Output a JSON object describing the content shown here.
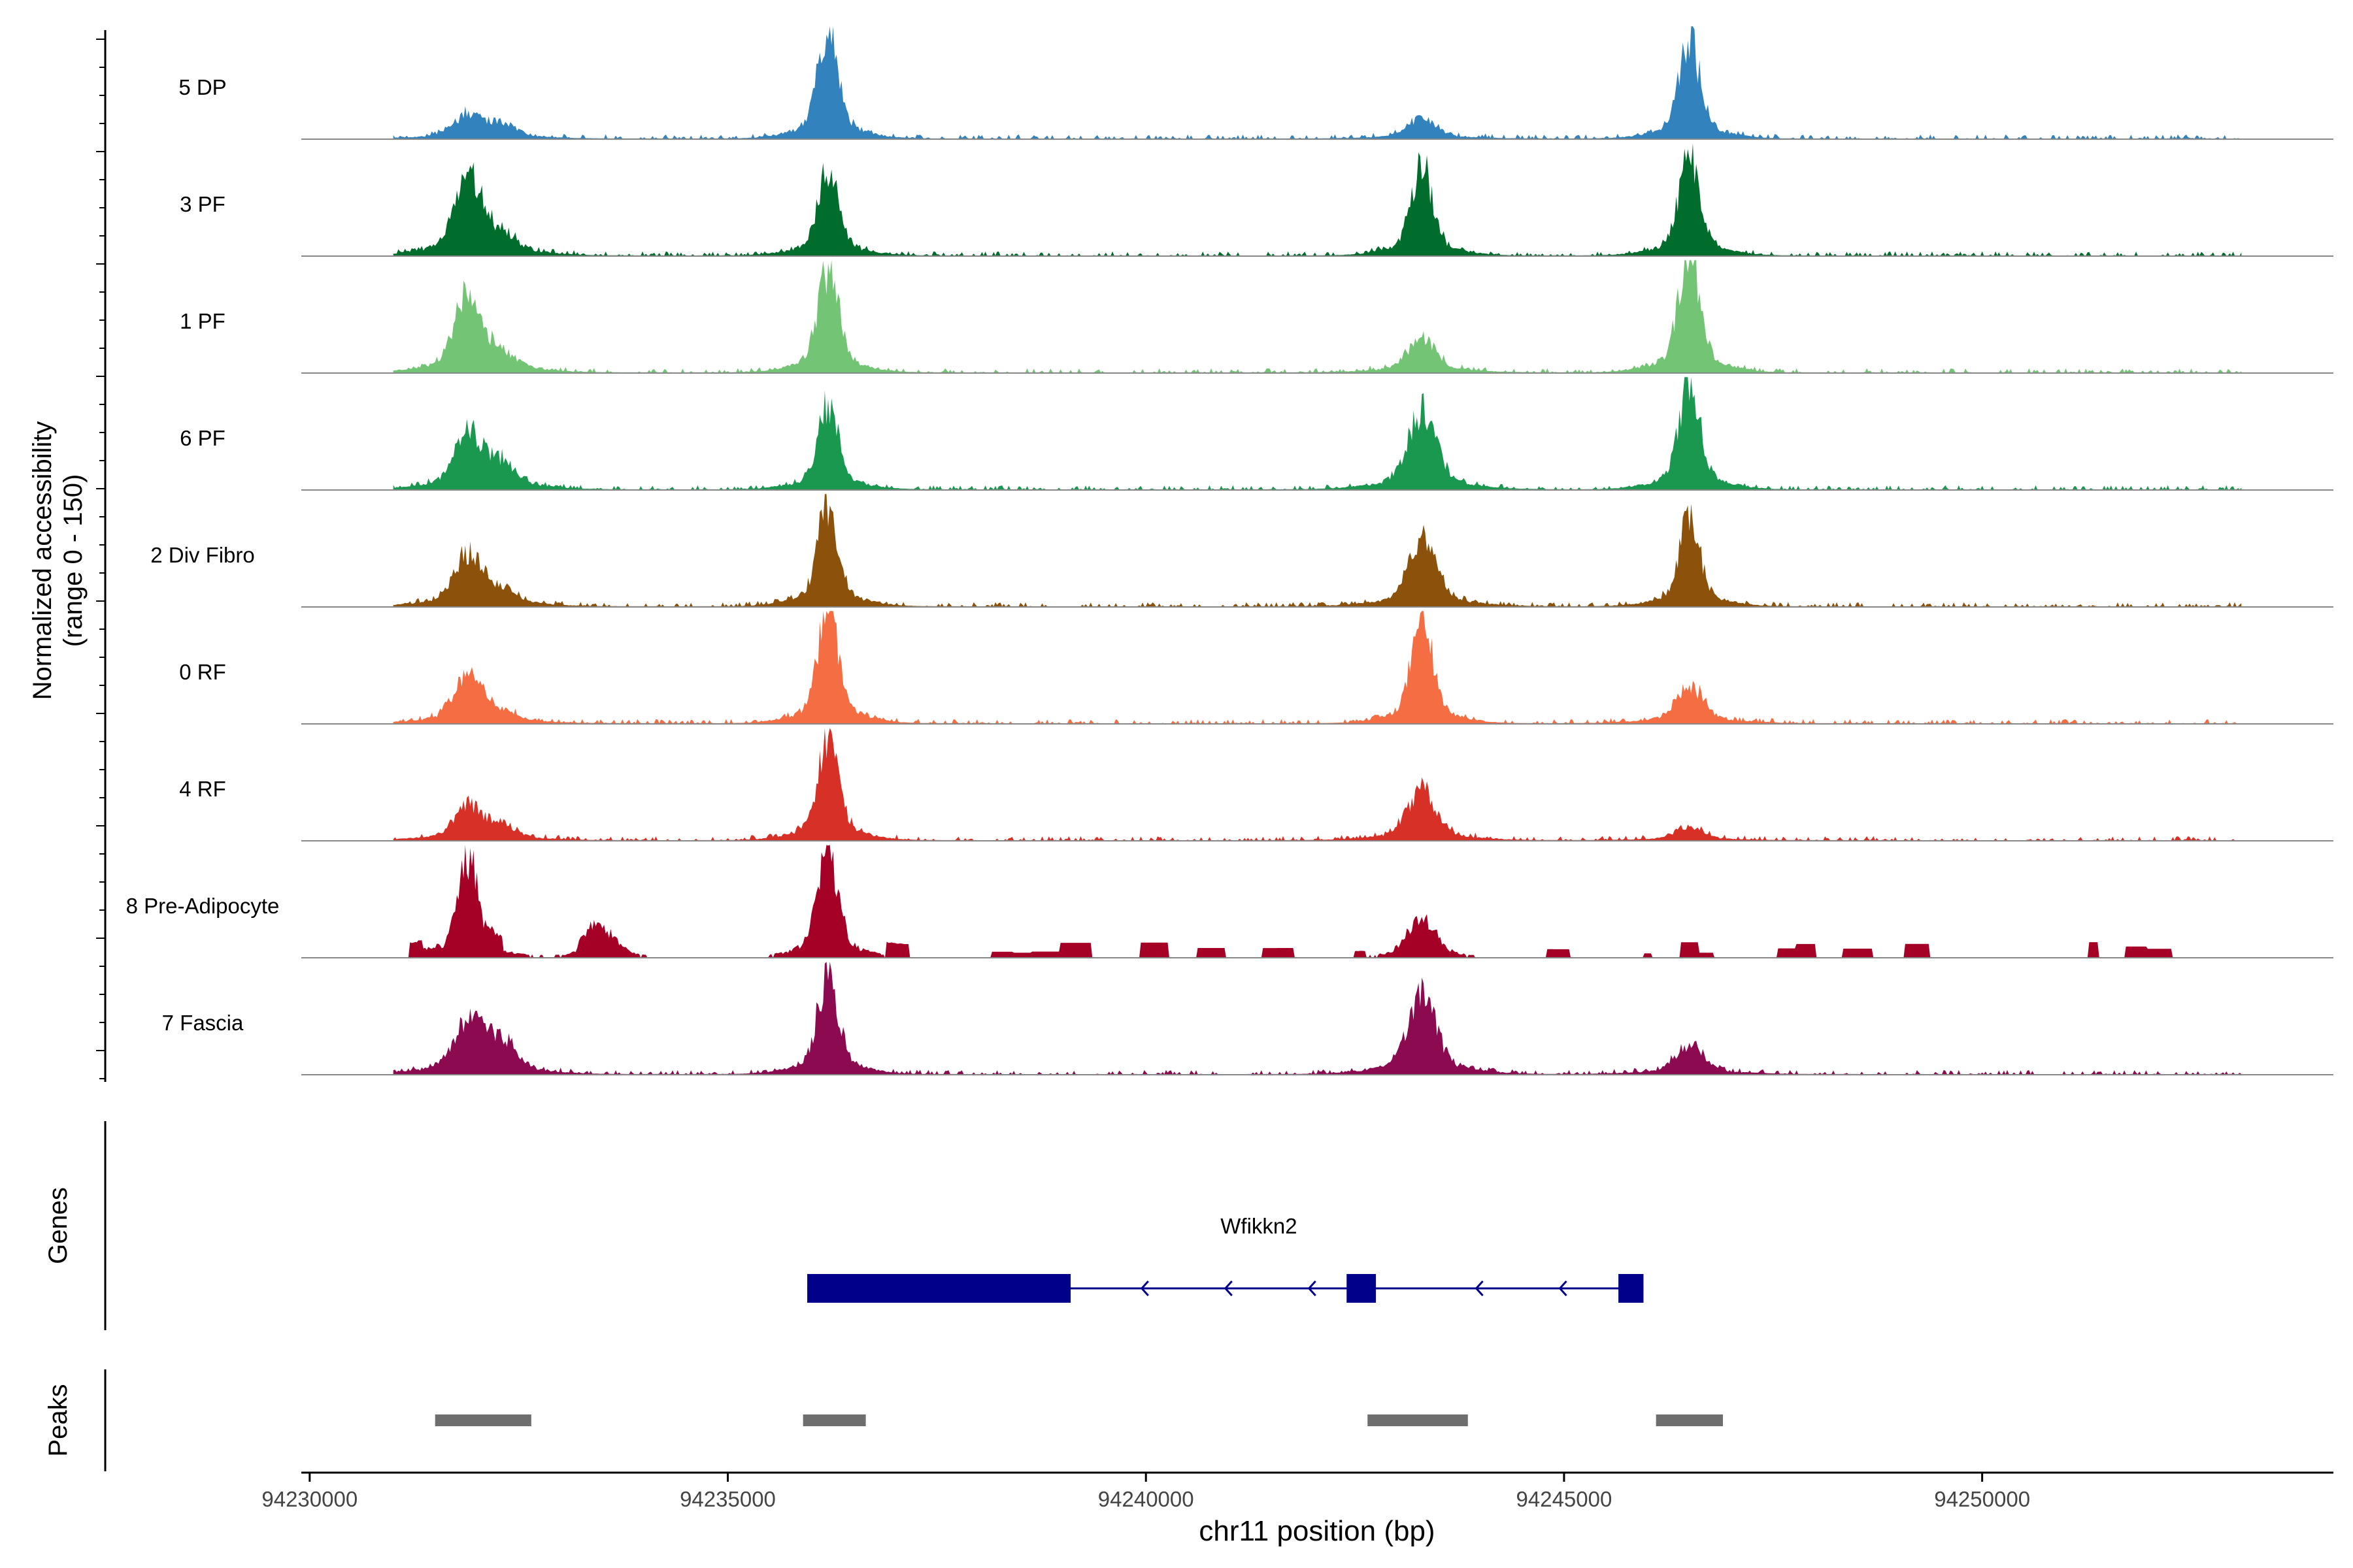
{
  "chart_data": {
    "type": "area",
    "title": "",
    "xlabel": "chr11 position (bp)",
    "ylabel_line1": "Normalized accessibility",
    "ylabel_line2": "(range 0 - 150)",
    "ylim": [
      0,
      150
    ],
    "xlim": [
      94229900,
      94254200
    ],
    "x_ticks": [
      94230000,
      94235000,
      94240000,
      94245000,
      94250000
    ],
    "x_tick_labels": [
      "94230000",
      "94235000",
      "94240000",
      "94245000",
      "94250000"
    ],
    "series": [
      {
        "name": "5 DP",
        "color": "#3182bd",
        "peaks": [
          [
            94231900,
            30
          ],
          [
            94232300,
            18
          ],
          [
            94236200,
            135
          ],
          [
            94243300,
            26
          ],
          [
            94246500,
            125
          ]
        ]
      },
      {
        "name": "3 PF",
        "color": "#006d2c",
        "peaks": [
          [
            94231900,
            95
          ],
          [
            94232300,
            22
          ],
          [
            94236200,
            105
          ],
          [
            94243300,
            115
          ],
          [
            94246500,
            125
          ]
        ]
      },
      {
        "name": "1 PF",
        "color": "#74c476",
        "peaks": [
          [
            94231900,
            95
          ],
          [
            94232300,
            18
          ],
          [
            94236200,
            130
          ],
          [
            94243300,
            45
          ],
          [
            94246500,
            155
          ]
        ]
      },
      {
        "name": "6 PF",
        "color": "#1a9850",
        "peaks": [
          [
            94231900,
            70
          ],
          [
            94232300,
            30
          ],
          [
            94236200,
            105
          ],
          [
            94243300,
            100
          ],
          [
            94246500,
            140
          ]
        ]
      },
      {
        "name": "2 Div Fibro",
        "color": "#8c510a",
        "peaks": [
          [
            94231900,
            68
          ],
          [
            94232300,
            18
          ],
          [
            94236200,
            130
          ],
          [
            94243300,
            85
          ],
          [
            94246500,
            110
          ]
        ]
      },
      {
        "name": "0 RF",
        "color": "#f46d43",
        "peaks": [
          [
            94231900,
            62
          ],
          [
            94232300,
            12
          ],
          [
            94236200,
            145
          ],
          [
            94243300,
            140
          ],
          [
            94246500,
            48
          ]
        ]
      },
      {
        "name": "4 RF",
        "color": "#d73027",
        "peaks": [
          [
            94231900,
            45
          ],
          [
            94232300,
            15
          ],
          [
            94236200,
            130
          ],
          [
            94243300,
            65
          ],
          [
            94246500,
            18
          ]
        ]
      },
      {
        "name": "8 Pre-Adipocyte",
        "color": "#a50026",
        "peaks": [
          [
            94231900,
            130
          ],
          [
            94236200,
            145
          ],
          [
            94243300,
            55
          ],
          [
            94233500,
            40
          ]
        ]
      },
      {
        "name": "7 Fascia",
        "color": "#8b0a50",
        "peaks": [
          [
            94231900,
            70
          ],
          [
            94232300,
            38
          ],
          [
            94236200,
            125
          ],
          [
            94243300,
            100
          ],
          [
            94246500,
            38
          ]
        ]
      }
    ],
    "genes": [
      {
        "name": "Wfikkn2",
        "color": "#00008b",
        "start": 94235950,
        "end": 94245950,
        "strand": "-",
        "exons": [
          [
            94235950,
            94239100
          ],
          [
            94242400,
            94242750
          ],
          [
            94245650,
            94245950
          ]
        ]
      }
    ],
    "genes_track_label": "Genes",
    "peaks_track_label": "Peaks",
    "peak_regions": [
      [
        94231500,
        94232650
      ],
      [
        94235900,
        94236650
      ],
      [
        94242650,
        94243850
      ],
      [
        94246100,
        94246900
      ]
    ]
  }
}
